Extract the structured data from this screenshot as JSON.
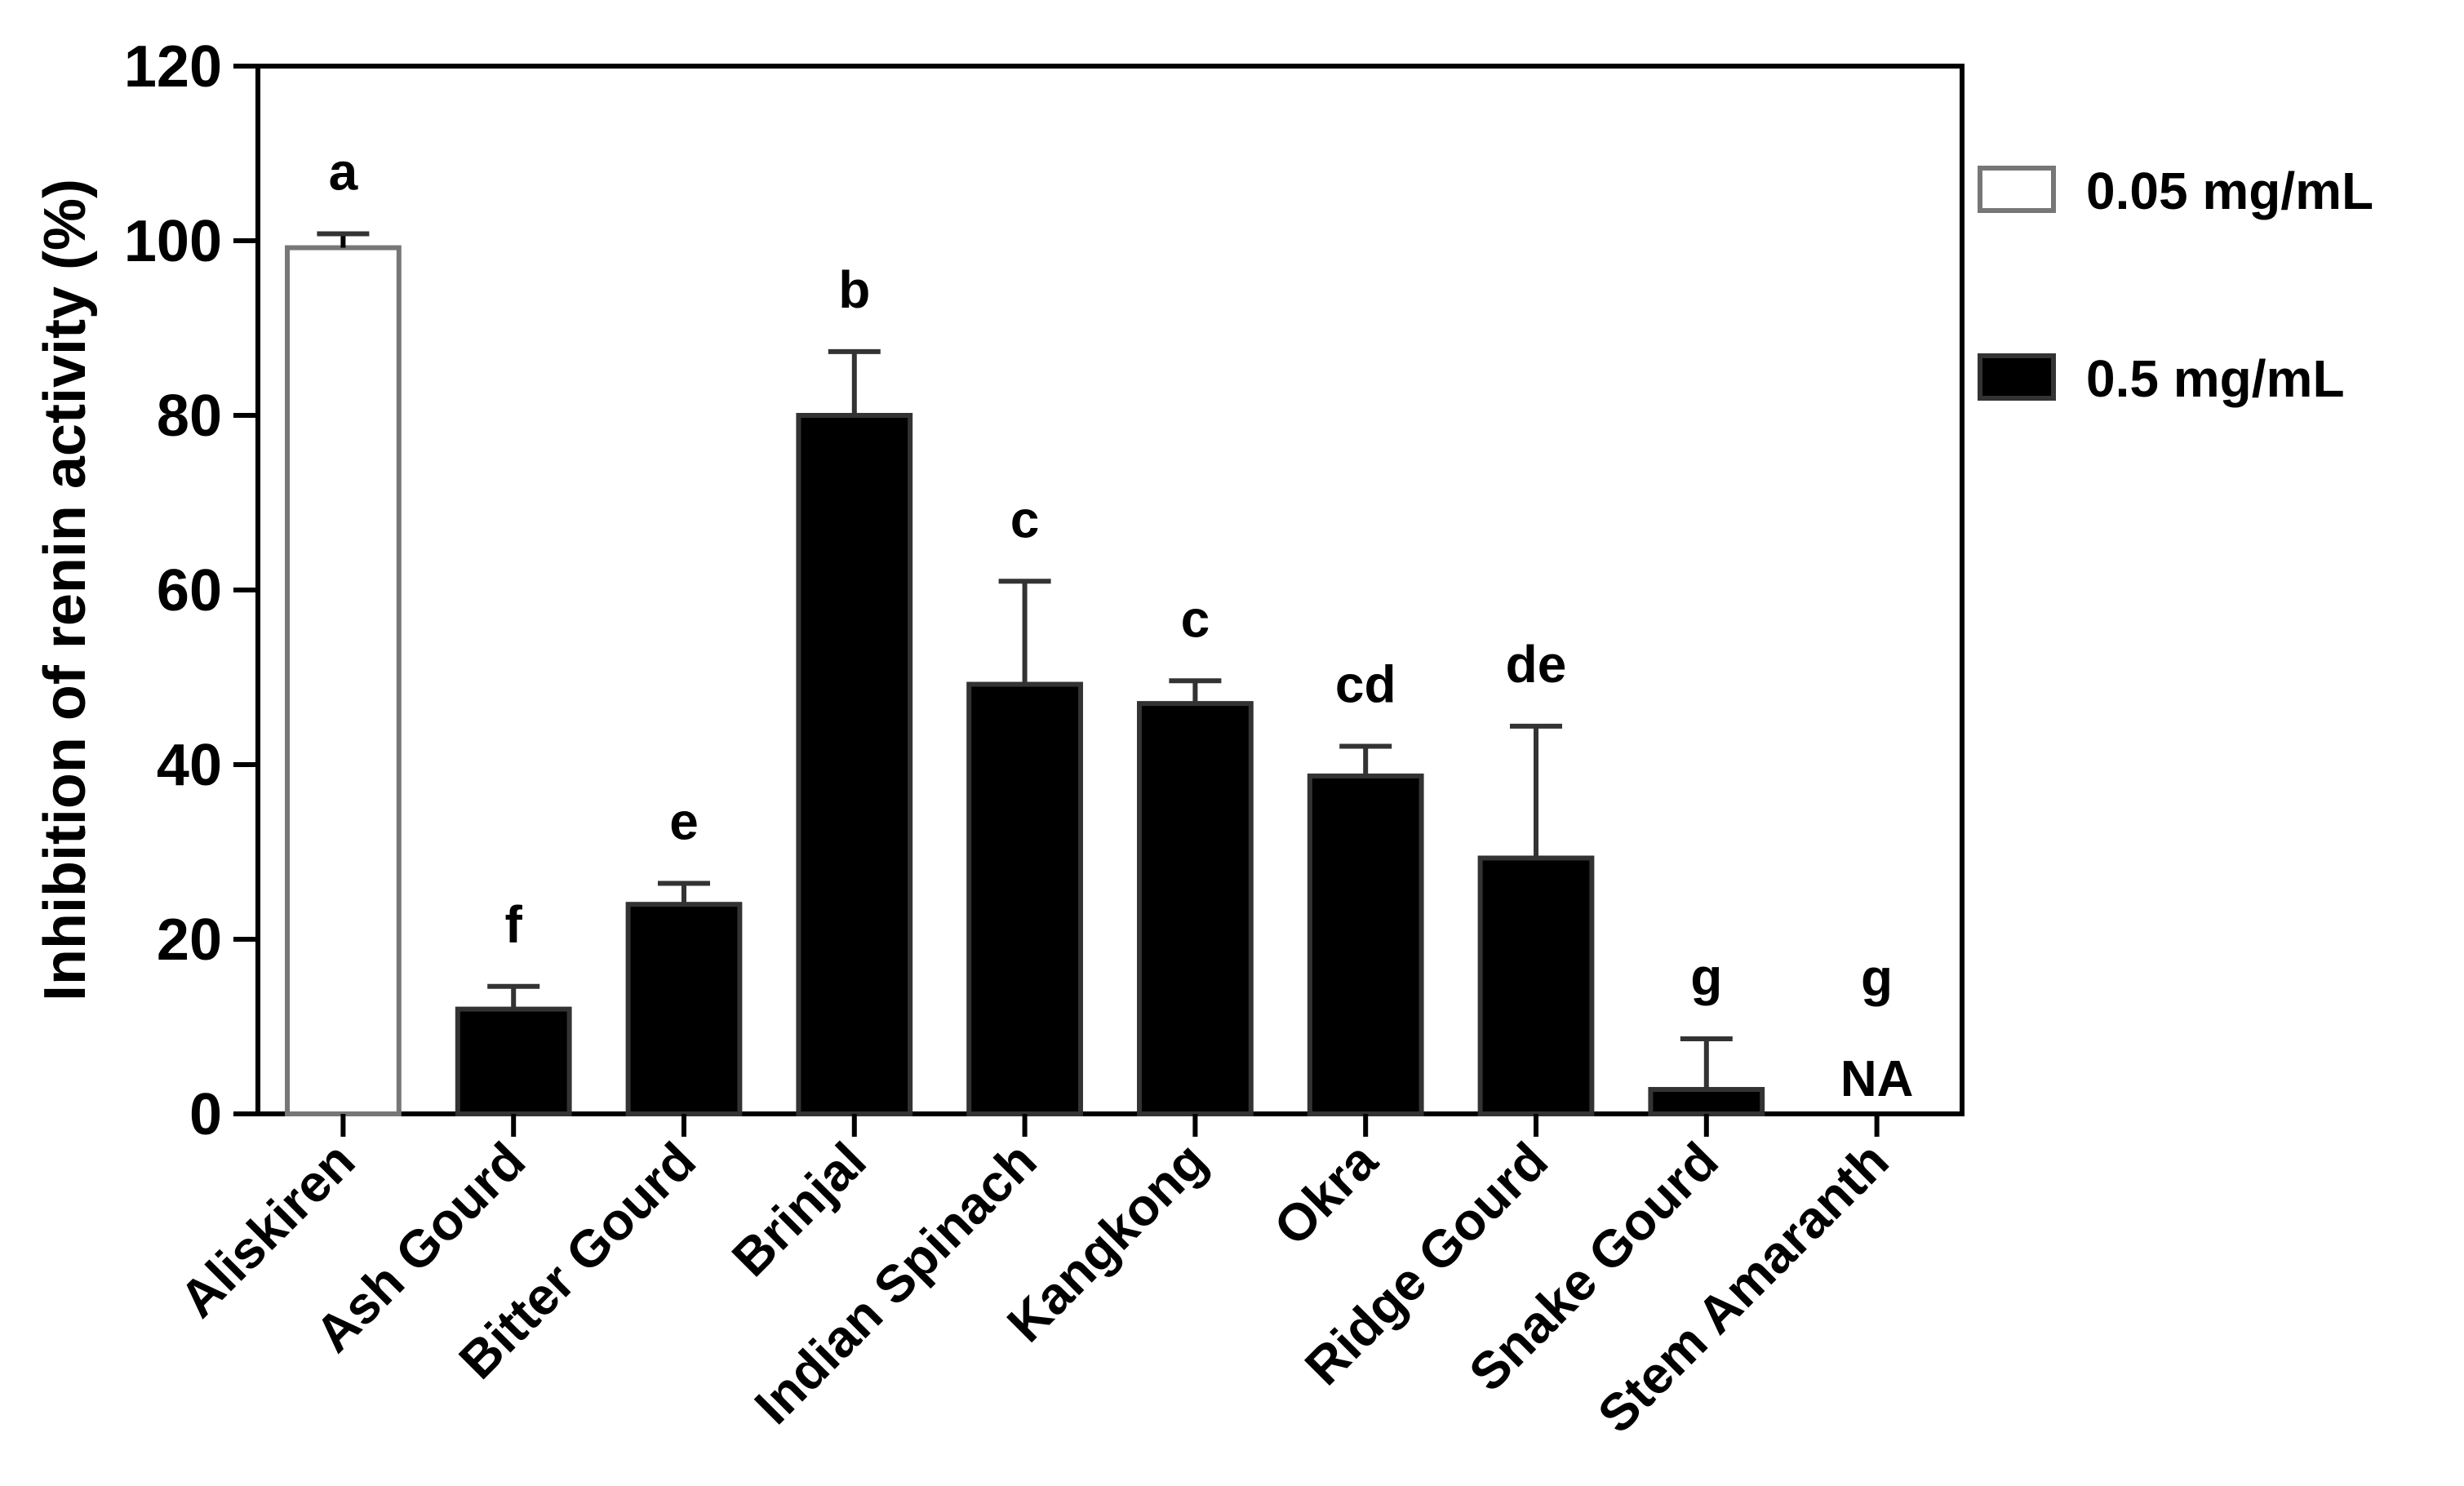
{
  "chart_data": {
    "type": "bar",
    "ylabel": "Inhibition of renin activity (%)",
    "ylim": [
      0,
      120
    ],
    "yticks": [
      0,
      20,
      40,
      60,
      80,
      100,
      120
    ],
    "grid": false,
    "legend_position": "right",
    "categories": [
      "Aliskiren",
      "Ash Gourd",
      "Bitter Gourd",
      "Brinjal",
      "Indian Spinach",
      "Kangkong",
      "Okra",
      "Ridge Gourd",
      "Snake Gourd",
      "Stem Amaranth"
    ],
    "series": [
      {
        "name": "0.05 mg/mL",
        "fill": "#ffffff",
        "stroke": "#777777"
      },
      {
        "name": "0.5 mg/mL",
        "fill": "#000000",
        "stroke": "#333333"
      }
    ],
    "bars": [
      {
        "series": 0,
        "value": 99.2,
        "error": 1.6,
        "label": "a"
      },
      {
        "series": 1,
        "value": 12.0,
        "error": 2.6,
        "label": "f"
      },
      {
        "series": 1,
        "value": 24.0,
        "error": 2.4,
        "label": "e"
      },
      {
        "series": 1,
        "value": 80.0,
        "error": 7.3,
        "label": "b"
      },
      {
        "series": 1,
        "value": 49.2,
        "error": 11.8,
        "label": "c"
      },
      {
        "series": 1,
        "value": 47.0,
        "error": 2.6,
        "label": "c"
      },
      {
        "series": 1,
        "value": 38.7,
        "error": 3.4,
        "label": "cd"
      },
      {
        "series": 1,
        "value": 29.3,
        "error": 15.1,
        "label": "de"
      },
      {
        "series": 1,
        "value": 2.8,
        "error": 5.8,
        "label": "g"
      },
      {
        "series": 1,
        "value": null,
        "error": null,
        "label": "g",
        "value_label": "NA"
      }
    ]
  }
}
